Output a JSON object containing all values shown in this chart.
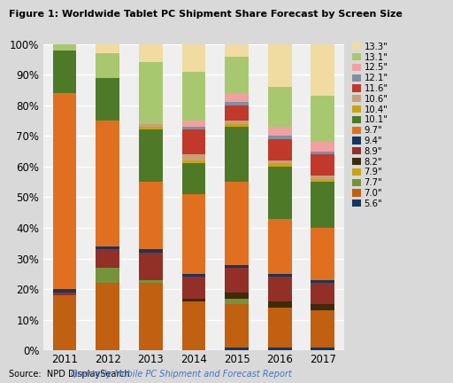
{
  "title": "Figure 1: Worldwide Tablet PC Shipment Share Forecast by Screen Size",
  "years": [
    "2011",
    "2012",
    "2013",
    "2014",
    "2015",
    "2016",
    "2017"
  ],
  "source_normal": "Source:  NPD DisplaySearch ",
  "source_italic": "Quarterly Mobile PC Shipment and Forecast Report",
  "categories": [
    "5.6\"",
    "7.0\"",
    "7.7\"",
    "7.9\"",
    "8.2\"",
    "8.9\"",
    "9.4\"",
    "9.7\"",
    "10.1\"",
    "10.4\"",
    "10.6\"",
    "11.6\"",
    "12.1\"",
    "12.5\"",
    "13.1\"",
    "13.3\""
  ],
  "colors": {
    "5.6\"": "#17375e",
    "7.0\"": "#c06010",
    "7.7\"": "#76933c",
    "7.9\"": "#c8a414",
    "8.2\"": "#3d2b0a",
    "8.9\"": "#923028",
    "9.4\"": "#17375e",
    "9.7\"": "#e07020",
    "10.1\"": "#4e7a28",
    "10.4\"": "#c8a414",
    "10.6\"": "#c8a07c",
    "11.6\"": "#c0392b",
    "12.1\"": "#7f8fa4",
    "12.5\"": "#f0a0a0",
    "13.1\"": "#a8c870",
    "13.3\"": "#f0dca0"
  },
  "data": {
    "5.6\"": [
      0,
      0,
      0,
      0,
      1,
      1,
      1
    ],
    "7.0\"": [
      18,
      22,
      22,
      16,
      14,
      13,
      12
    ],
    "7.7\"": [
      0,
      5,
      1,
      0,
      2,
      0,
      0
    ],
    "7.9\"": [
      0,
      0,
      0,
      0,
      0,
      0,
      0
    ],
    "8.2\"": [
      0,
      0,
      0,
      1,
      2,
      2,
      2
    ],
    "8.9\"": [
      1,
      6,
      9,
      7,
      8,
      8,
      7
    ],
    "9.4\"": [
      1,
      1,
      1,
      1,
      1,
      1,
      1
    ],
    "9.7\"": [
      64,
      41,
      22,
      26,
      27,
      18,
      17
    ],
    "10.1\"": [
      14,
      14,
      17,
      10,
      18,
      17,
      15
    ],
    "10.4\"": [
      0,
      0,
      1,
      1,
      1,
      1,
      1
    ],
    "10.6\"": [
      0,
      0,
      1,
      2,
      1,
      1,
      1
    ],
    "11.6\"": [
      0,
      0,
      0,
      8,
      5,
      7,
      7
    ],
    "12.1\"": [
      0,
      0,
      0,
      1,
      1,
      1,
      1
    ],
    "12.5\"": [
      0,
      0,
      0,
      2,
      3,
      3,
      3
    ],
    "13.1\"": [
      2,
      8,
      20,
      16,
      12,
      13,
      15
    ],
    "13.3\"": [
      0,
      3,
      6,
      9,
      4,
      14,
      17
    ]
  },
  "bg_color": "#d9d9d9",
  "plot_bg_color": "#efefef"
}
